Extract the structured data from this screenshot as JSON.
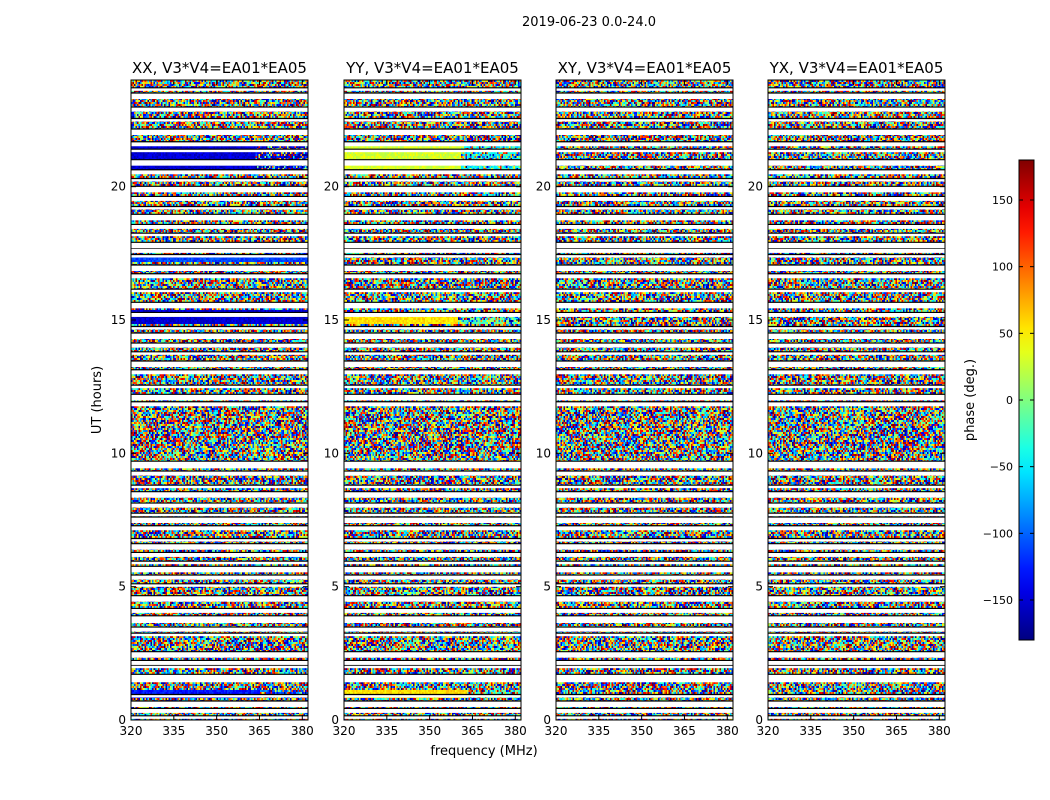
{
  "chart_data": {
    "type": "heatmap",
    "suptitle": "2019-06-23 0.0-24.0",
    "xlabel": "frequency (MHz)",
    "ylabel": "UT (hours)",
    "xlim": [
      320,
      382
    ],
    "ylim": [
      0,
      24
    ],
    "xticks": [
      "320",
      "335",
      "350",
      "365",
      "380"
    ],
    "xtick_values": [
      320,
      335,
      350,
      365,
      380
    ],
    "yticks": [
      "0",
      "5",
      "10",
      "15",
      "20"
    ],
    "ytick_values": [
      0,
      5,
      10,
      15,
      20
    ],
    "panels": [
      {
        "title": "XX, V3*V4=EA01*EA05",
        "pol": "XX"
      },
      {
        "title": "YY, V3*V4=EA01*EA05",
        "pol": "YY"
      },
      {
        "title": "XY, V3*V4=EA01*EA05",
        "pol": "XY"
      },
      {
        "title": "YX, V3*V4=EA01*EA05",
        "pol": "YX"
      }
    ],
    "colorbar": {
      "label": "phase (deg.)",
      "range": [
        -180,
        180
      ],
      "ticks": [
        "150",
        "100",
        "50",
        "0",
        "−50",
        "−100",
        "−150"
      ],
      "tick_values": [
        150,
        100,
        50,
        0,
        -50,
        -100,
        -150
      ],
      "colormap": "jet"
    },
    "flagged_hours": [
      0.1,
      0.35,
      0.6,
      0.9,
      1.5,
      1.6,
      2.0,
      2.15,
      2.45,
      3.2,
      3.4,
      3.75,
      3.85,
      4.1,
      4.55,
      5.05,
      5.35,
      5.65,
      5.9,
      6.2,
      6.5,
      6.75,
      7.2,
      7.5,
      7.7,
      8.05,
      8.45,
      8.75,
      9.25,
      9.55,
      9.65,
      11.85,
      12.1,
      12.5,
      13.05,
      13.35,
      13.75,
      14.05,
      14.4,
      14.7,
      15.2,
      15.55,
      16.1,
      16.65,
      16.95,
      17.4,
      17.6,
      17.8,
      18.2,
      18.5,
      18.85,
      19.2,
      19.55,
      19.9,
      20.25,
      20.55,
      20.9,
      21.35,
      21.6,
      22.05,
      22.5,
      22.9,
      23.4,
      23.65
    ],
    "coherent_regions": [
      {
        "pol": "XX",
        "t0": 20.5,
        "t1": 21.6,
        "f_break": 363.5,
        "phase_low": -150,
        "phase_high": -150
      },
      {
        "pol": "XX",
        "t0": 0.85,
        "t1": 1.15,
        "f_break": 365,
        "phase_low": -130,
        "phase_high": -110
      },
      {
        "pol": "XX",
        "t0": 14.85,
        "t1": 15.35,
        "f_break": 382,
        "phase_low": -150,
        "phase_high": -150
      },
      {
        "pol": "XX",
        "t0": 17.2,
        "t1": 17.45,
        "f_break": 382,
        "phase_low": -110,
        "phase_high": -110
      },
      {
        "pol": "YY",
        "t0": 20.5,
        "t1": 21.6,
        "f_break": 361,
        "phase_low": 30,
        "phase_high": -40
      },
      {
        "pol": "YY",
        "t0": 0.85,
        "t1": 1.15,
        "f_break": 363,
        "phase_low": 55,
        "phase_high": -20
      },
      {
        "pol": "YY",
        "t0": 14.85,
        "t1": 15.3,
        "f_break": 360,
        "phase_low": 55,
        "phase_high": -10
      }
    ]
  }
}
